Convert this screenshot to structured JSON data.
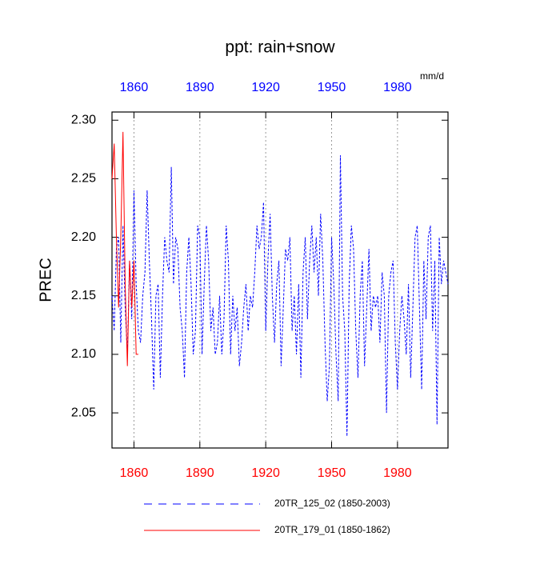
{
  "chart_data": {
    "type": "line",
    "title": "ppt: rain+snow",
    "units_label": "mm/d",
    "y_label": "PREC",
    "xlim": [
      1850,
      2003
    ],
    "ylim": [
      2.02,
      2.307
    ],
    "xticks": [
      1860,
      1890,
      1920,
      1950,
      1980
    ],
    "xtick_color": "#ff0000",
    "x2ticks": [
      1860,
      1890,
      1920,
      1950,
      1980
    ],
    "x2tick_color": "#0000ff",
    "yticks": [
      {
        "value": 2.05,
        "label": "2.05"
      },
      {
        "value": 2.1,
        "label": "2.10"
      },
      {
        "value": 2.15,
        "label": "2.15"
      },
      {
        "value": 2.2,
        "label": "2.20"
      },
      {
        "value": 2.25,
        "label": "2.25"
      },
      {
        "value": 2.3,
        "label": "2.30"
      }
    ],
    "grid": true,
    "series": [
      {
        "name": "20TR_125_02 (1850-2003)",
        "color": "#0000ff",
        "line_style": "dashed",
        "x_start": 1850,
        "values": [
          2.15,
          2.12,
          2.19,
          2.2,
          2.11,
          2.21,
          2.14,
          2.1,
          2.18,
          2.13,
          2.24,
          2.16,
          2.12,
          2.11,
          2.15,
          2.17,
          2.24,
          2.18,
          2.13,
          2.07,
          2.15,
          2.16,
          2.08,
          2.15,
          2.2,
          2.18,
          2.17,
          2.26,
          2.16,
          2.2,
          2.19,
          2.14,
          2.12,
          2.08,
          2.17,
          2.2,
          2.16,
          2.1,
          2.12,
          2.21,
          2.2,
          2.1,
          2.16,
          2.21,
          2.18,
          2.12,
          2.14,
          2.1,
          2.11,
          2.15,
          2.1,
          2.13,
          2.21,
          2.18,
          2.1,
          2.15,
          2.12,
          2.14,
          2.09,
          2.11,
          2.14,
          2.16,
          2.12,
          2.15,
          2.14,
          2.17,
          2.21,
          2.19,
          2.2,
          2.23,
          2.12,
          2.18,
          2.22,
          2.15,
          2.11,
          2.16,
          2.18,
          2.09,
          2.14,
          2.19,
          2.18,
          2.2,
          2.12,
          2.15,
          2.1,
          2.16,
          2.08,
          2.17,
          2.2,
          2.13,
          2.18,
          2.21,
          2.17,
          2.2,
          2.15,
          2.22,
          2.18,
          2.11,
          2.06,
          2.09,
          2.2,
          2.16,
          2.1,
          2.06,
          2.27,
          2.15,
          2.12,
          2.03,
          2.16,
          2.21,
          2.19,
          2.12,
          2.08,
          2.15,
          2.18,
          2.09,
          2.14,
          2.19,
          2.12,
          2.15,
          2.14,
          2.15,
          2.11,
          2.17,
          2.15,
          2.05,
          2.15,
          2.17,
          2.18,
          2.11,
          2.07,
          2.12,
          2.15,
          2.13,
          2.1,
          2.16,
          2.08,
          2.14,
          2.2,
          2.21,
          2.14,
          2.07,
          2.18,
          2.13,
          2.2,
          2.21,
          2.12,
          2.18,
          2.04,
          2.2,
          2.16,
          2.18,
          2.17,
          2.16
        ]
      },
      {
        "name": "20TR_179_01 (1850-1862)",
        "color": "#ff0000",
        "line_style": "solid",
        "x_start": 1850,
        "values": [
          2.25,
          2.28,
          2.2,
          2.14,
          2.2,
          2.29,
          2.16,
          2.09,
          2.18,
          2.14,
          2.18,
          2.1,
          2.1
        ]
      }
    ]
  }
}
